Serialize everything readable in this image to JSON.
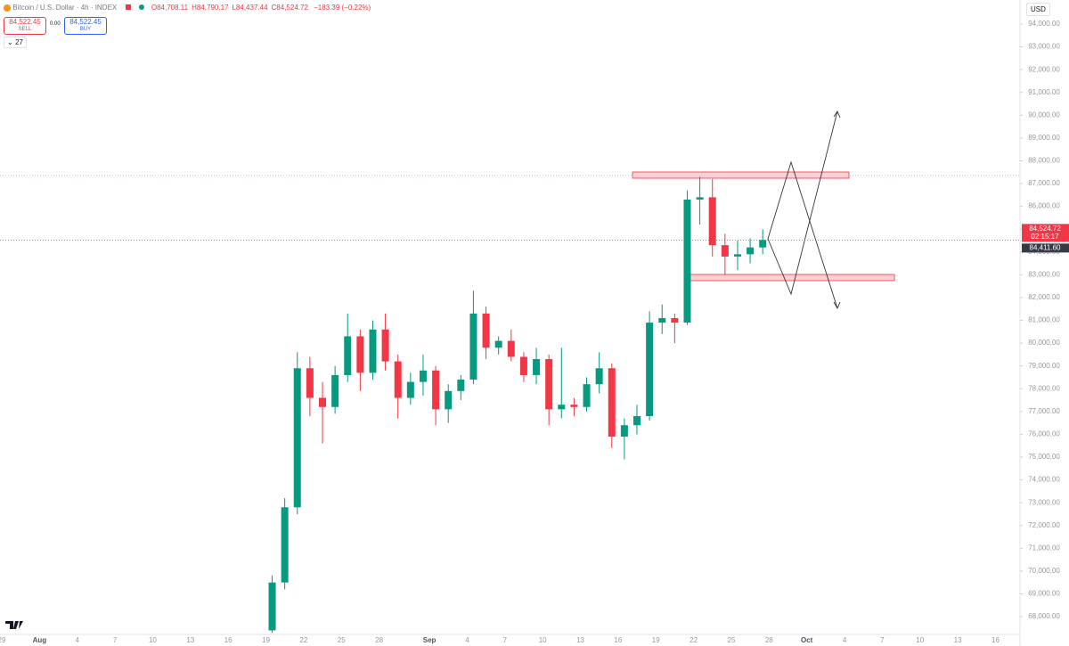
{
  "chart_data": {
    "type": "candlestick",
    "categories": [
      "29",
      null,
      null,
      "Aug",
      null,
      null,
      "4",
      null,
      null,
      "7",
      null,
      null,
      "10",
      null,
      null,
      "13",
      null,
      null,
      "16",
      null,
      null,
      "19",
      null,
      null,
      "22",
      null,
      null,
      "25",
      null,
      null,
      "28",
      null,
      null,
      null,
      "Sep",
      null,
      null,
      "4",
      null,
      null,
      "7",
      null,
      null,
      "10",
      null,
      null,
      "13",
      null,
      null,
      "16",
      null,
      null,
      "19",
      null,
      null,
      "22",
      null,
      null,
      "25",
      null,
      null,
      "28",
      null,
      null,
      "Oct",
      null,
      null,
      "4",
      null,
      null,
      "7",
      null,
      null,
      "10",
      null,
      null,
      "13",
      null,
      null,
      "16"
    ],
    "open": [
      null,
      null,
      null,
      null,
      null,
      null,
      null,
      null,
      null,
      null,
      null,
      null,
      null,
      null,
      null,
      null,
      null,
      null,
      null,
      null,
      null,
      67400,
      69500,
      72800,
      78900,
      77600,
      77200,
      78600,
      80300,
      78700,
      80600,
      79200,
      77600,
      78300,
      78800,
      77100,
      77900,
      78400,
      81300,
      79800,
      80100,
      79400,
      78600,
      79300,
      77100,
      77300,
      77200,
      78200,
      78900,
      75900,
      76400,
      76800,
      80900,
      81100,
      80900,
      86300,
      86400,
      84300,
      83800,
      83900,
      84200,
      null,
      null,
      null,
      null,
      null,
      null,
      null,
      null,
      null,
      null,
      null,
      null,
      null,
      null,
      null,
      null,
      null,
      null,
      null
    ],
    "high": [
      null,
      null,
      null,
      null,
      null,
      null,
      null,
      null,
      null,
      null,
      null,
      null,
      null,
      null,
      null,
      null,
      null,
      null,
      null,
      null,
      null,
      69800,
      73200,
      79600,
      79400,
      78300,
      79000,
      81300,
      80600,
      81000,
      81300,
      79500,
      78700,
      79500,
      79000,
      78200,
      78600,
      82300,
      81600,
      80300,
      80600,
      79600,
      79800,
      79500,
      79800,
      77600,
      78500,
      79600,
      79100,
      76700,
      77300,
      81400,
      81700,
      81300,
      86700,
      87300,
      87200,
      84800,
      84500,
      84600,
      85000,
      null,
      null,
      null,
      null,
      null,
      null,
      null,
      null,
      null,
      null,
      null,
      null,
      null,
      null,
      null,
      null,
      null,
      null,
      null
    ],
    "low": [
      null,
      null,
      null,
      null,
      null,
      null,
      null,
      null,
      null,
      null,
      null,
      null,
      null,
      null,
      null,
      null,
      null,
      null,
      null,
      null,
      null,
      67300,
      69200,
      72500,
      76800,
      75600,
      76900,
      78300,
      77900,
      78400,
      78800,
      76700,
      77300,
      77700,
      76400,
      76500,
      77500,
      78200,
      79300,
      79500,
      79200,
      78300,
      78200,
      76400,
      76700,
      76800,
      77000,
      77800,
      75400,
      74900,
      76000,
      76600,
      80400,
      80000,
      80800,
      85200,
      83800,
      83000,
      83200,
      83500,
      83900,
      null,
      null,
      null,
      null,
      null,
      null,
      null,
      null,
      null,
      null,
      null,
      null,
      null,
      null,
      null,
      null,
      null,
      null,
      null
    ],
    "close": [
      null,
      null,
      null,
      null,
      null,
      null,
      null,
      null,
      null,
      null,
      null,
      null,
      null,
      null,
      null,
      null,
      null,
      null,
      null,
      null,
      null,
      69500,
      72800,
      78900,
      77600,
      77200,
      78600,
      80300,
      78700,
      80600,
      79200,
      77600,
      78300,
      78800,
      77100,
      77900,
      78400,
      81300,
      79800,
      80100,
      79400,
      78600,
      79300,
      77100,
      77300,
      77200,
      78200,
      78900,
      75900,
      76400,
      76800,
      80900,
      81100,
      80900,
      86300,
      86400,
      84300,
      83800,
      83900,
      84200,
      84524.72,
      null,
      null,
      null,
      null,
      null,
      null,
      null,
      null,
      null,
      null,
      null,
      null,
      null,
      null,
      null,
      null,
      null,
      null,
      null
    ],
    "up_color": "#089981",
    "down_color": "#f23645",
    "ylim": [
      67300,
      95055
    ],
    "yticks": [
      {
        "value": 68000,
        "label": "68,000.00"
      },
      {
        "value": 69000,
        "label": "69,000.00"
      },
      {
        "value": 70000,
        "label": "70,000.00"
      },
      {
        "value": 71000,
        "label": "71,000.00"
      },
      {
        "value": 72000,
        "label": "72,000.00"
      },
      {
        "value": 73000,
        "label": "73,000.00"
      },
      {
        "value": 74000,
        "label": "74,000.00"
      },
      {
        "value": 75000,
        "label": "75,000.00"
      },
      {
        "value": 76000,
        "label": "76,000.00"
      },
      {
        "value": 77000,
        "label": "77,000.00"
      },
      {
        "value": 78000,
        "label": "78,000.00"
      },
      {
        "value": 79000,
        "label": "79,000.00"
      },
      {
        "value": 80000,
        "label": "80,000.00"
      },
      {
        "value": 81000,
        "label": "81,000.00"
      },
      {
        "value": 82000,
        "label": "82,000.00"
      },
      {
        "value": 83000,
        "label": "83,000.00"
      },
      {
        "value": 84000,
        "label": "84,000.00"
      },
      {
        "value": 85000,
        "label": "85,000.00"
      },
      {
        "value": 86000,
        "label": "86,000.00"
      },
      {
        "value": 87000,
        "label": "87,000.00"
      },
      {
        "value": 88000,
        "label": "88,000.00"
      },
      {
        "value": 89000,
        "label": "89,000.00"
      },
      {
        "value": 90000,
        "label": "90,000.00"
      },
      {
        "value": 91000,
        "label": "91,000.00"
      },
      {
        "value": 92000,
        "label": "92,000.00"
      },
      {
        "value": 93000,
        "label": "93,000.00"
      },
      {
        "value": 94000,
        "label": "94,000.00"
      }
    ],
    "grid": false,
    "price_line": {
      "value": 84524.72,
      "label": "84,524.72",
      "countdown": "02:15:17"
    },
    "bid_line": {
      "value": 84411.6,
      "label": "84,411.60"
    }
  },
  "toolbar": {
    "symbol": "Bitcoin / U.S. Dollar · 4h · INDEX",
    "ohlc": [
      {
        "key": "O",
        "value": "84,708.11"
      },
      {
        "key": "H",
        "value": "84,790.17"
      },
      {
        "key": "L",
        "value": "84,437.44"
      },
      {
        "key": "C",
        "value": "84,524.72"
      }
    ],
    "change": "−183.39 (−0.22%)",
    "sell_price": "84,522.45",
    "sell": "SELL",
    "spread": "0.00",
    "buy_price": "84,522.45",
    "buy": "BUY",
    "indicators": "27",
    "currency": "USD"
  }
}
